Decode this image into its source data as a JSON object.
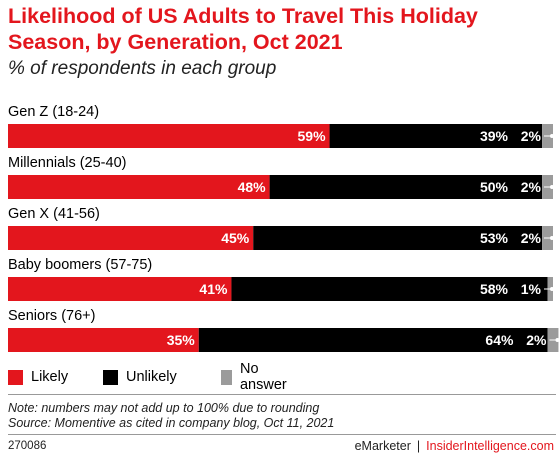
{
  "chart_data": {
    "type": "bar",
    "orientation": "horizontal",
    "stacked": true,
    "title": "Likelihood of US Adults to Travel This Holiday Season, by Generation, Oct 2021",
    "subtitle": "% of respondents in each group",
    "categories": [
      "Gen Z (18-24)",
      "Millennials (25-40)",
      "Gen X (41-56)",
      "Baby boomers (57-75)",
      "Seniors (76+)"
    ],
    "series": [
      {
        "name": "Likely",
        "color": "#e3161d",
        "values": [
          59,
          48,
          45,
          41,
          35
        ]
      },
      {
        "name": "Unlikely",
        "color": "#000000",
        "values": [
          39,
          50,
          53,
          58,
          64
        ]
      },
      {
        "name": "No answer",
        "color": "#9b9b9b",
        "values": [
          2,
          2,
          2,
          1,
          2
        ]
      }
    ],
    "value_suffix": "%",
    "xlim": [
      0,
      100
    ],
    "grid": false,
    "legend": "bottom-left"
  },
  "notes": [
    "Note: numbers may not add up to 100% due to rounding",
    "Source: Momentive as cited in company blog, Oct 11, 2021"
  ],
  "footer": {
    "chart_id": "270086",
    "brand": "eMarketer",
    "separator": "|",
    "site": "InsiderIntelligence.com"
  }
}
